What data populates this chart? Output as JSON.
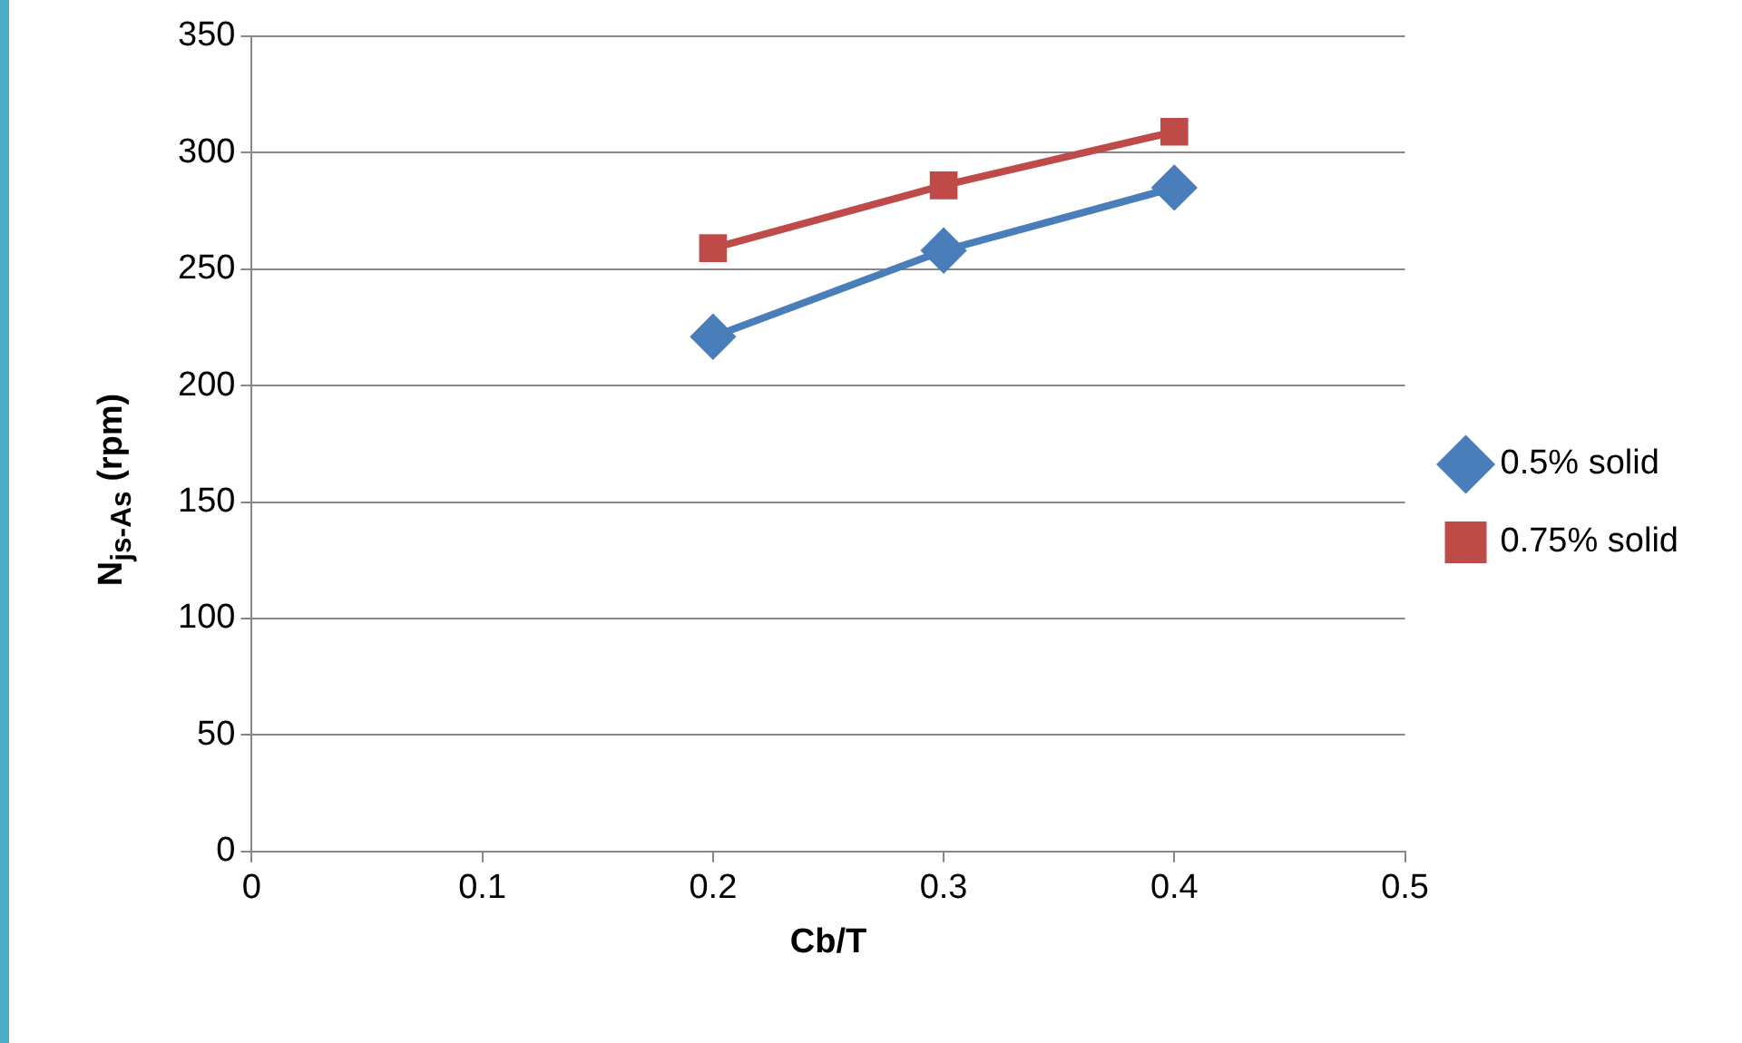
{
  "chart_data": {
    "type": "line",
    "xlabel": "Cb/T",
    "ylabel": "N$_{js-As}$ (rpm)",
    "x": [
      0.2,
      0.3,
      0.4
    ],
    "series": [
      {
        "name": "0.5% solid",
        "color": "#4a7ebb",
        "marker": "diamond",
        "values": [
          221,
          258,
          285
        ]
      },
      {
        "name": "0.75% solid",
        "color": "#be4b48",
        "marker": "square",
        "values": [
          259,
          286,
          309
        ]
      }
    ],
    "xlim": [
      0,
      0.5
    ],
    "xticks": [
      0,
      0.1,
      0.2,
      0.3,
      0.4,
      0.5
    ],
    "ylim": [
      0,
      350
    ],
    "yticks": [
      0,
      50,
      100,
      150,
      200,
      250,
      300,
      350
    ],
    "grid": "y",
    "legend": "right",
    "line_style": "solid"
  }
}
